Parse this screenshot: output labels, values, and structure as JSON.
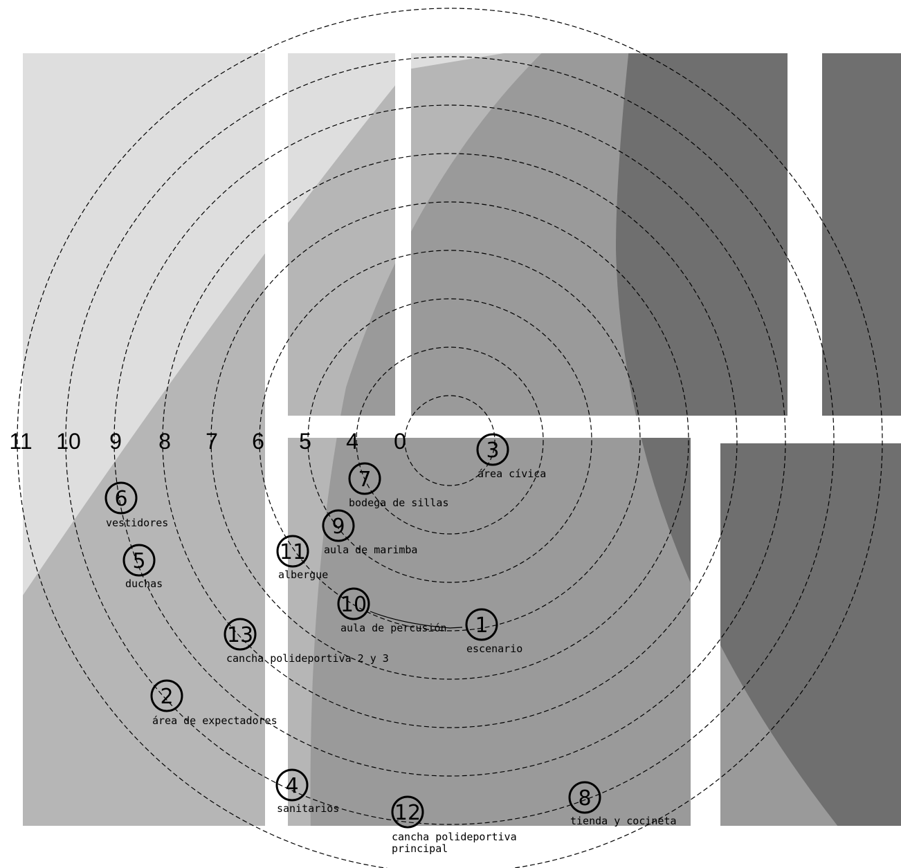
{
  "colors": {
    "zone_light": "#dedede",
    "zone_mid": "#b6b6b6",
    "zone_mid_dark": "#9a9a9a",
    "zone_dark": "#6f6f6f",
    "ring_stroke": "#000000"
  },
  "scale_labels": [
    "11",
    "10",
    "9",
    "8",
    "7",
    "6",
    "5",
    "4",
    "0"
  ],
  "nodes": [
    {
      "number": "1",
      "label": [
        "escenario"
      ]
    },
    {
      "number": "2",
      "label": [
        "área de expectadores"
      ]
    },
    {
      "number": "3",
      "label": [
        "área cívica"
      ]
    },
    {
      "number": "4",
      "label": [
        "sanitarios"
      ]
    },
    {
      "number": "5",
      "label": [
        "duchas"
      ]
    },
    {
      "number": "6",
      "label": [
        "vestidores"
      ]
    },
    {
      "number": "7",
      "label": [
        "bodega de sillas"
      ]
    },
    {
      "number": "8",
      "label": [
        "tienda y cocineta"
      ]
    },
    {
      "number": "9",
      "label": [
        "aula de marimba"
      ]
    },
    {
      "number": "10",
      "label": [
        "aula de percusión"
      ]
    },
    {
      "number": "11",
      "label": [
        "albergue"
      ]
    },
    {
      "number": "12",
      "label": [
        "cancha polideportiva",
        "principal"
      ]
    },
    {
      "number": "13",
      "label": [
        "cancha polideportiva 2 y 3"
      ]
    }
  ]
}
